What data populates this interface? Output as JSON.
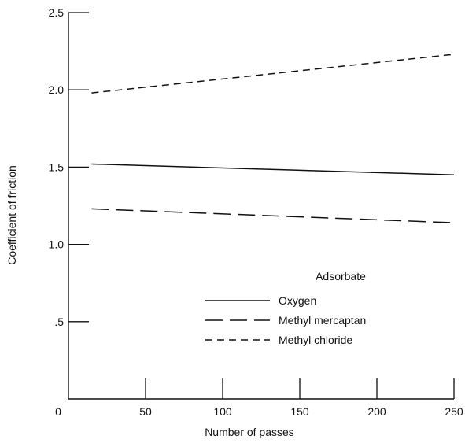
{
  "chart_data": {
    "type": "line",
    "xlabel": "Number of passes",
    "ylabel": "Coefficient of friction",
    "xlim": [
      0,
      250
    ],
    "ylim": [
      0,
      2.5
    ],
    "x_ticks": [
      0,
      50,
      100,
      150,
      200,
      250
    ],
    "x_tick_labels": [
      "0",
      "50",
      "100",
      "150",
      "200",
      "250"
    ],
    "y_ticks": [
      0.5,
      1.0,
      1.5,
      2.0,
      2.5
    ],
    "y_tick_labels": [
      ".5",
      "1.0",
      "1.5",
      "2.0",
      "2.5"
    ],
    "grid": false,
    "legend": {
      "title": "Adsorbate",
      "placement": "center-right"
    },
    "series": [
      {
        "name": "Oxygen",
        "style": "solid",
        "x": [
          15,
          250
        ],
        "y": [
          1.52,
          1.45
        ]
      },
      {
        "name": "Methyl mercaptan",
        "style": "long-dash",
        "x": [
          15,
          250
        ],
        "y": [
          1.23,
          1.14
        ]
      },
      {
        "name": "Methyl chloride",
        "style": "short-dash",
        "x": [
          15,
          250
        ],
        "y": [
          1.98,
          2.23
        ]
      }
    ],
    "colors": {
      "ink": "#111111",
      "background": "#ffffff"
    }
  }
}
